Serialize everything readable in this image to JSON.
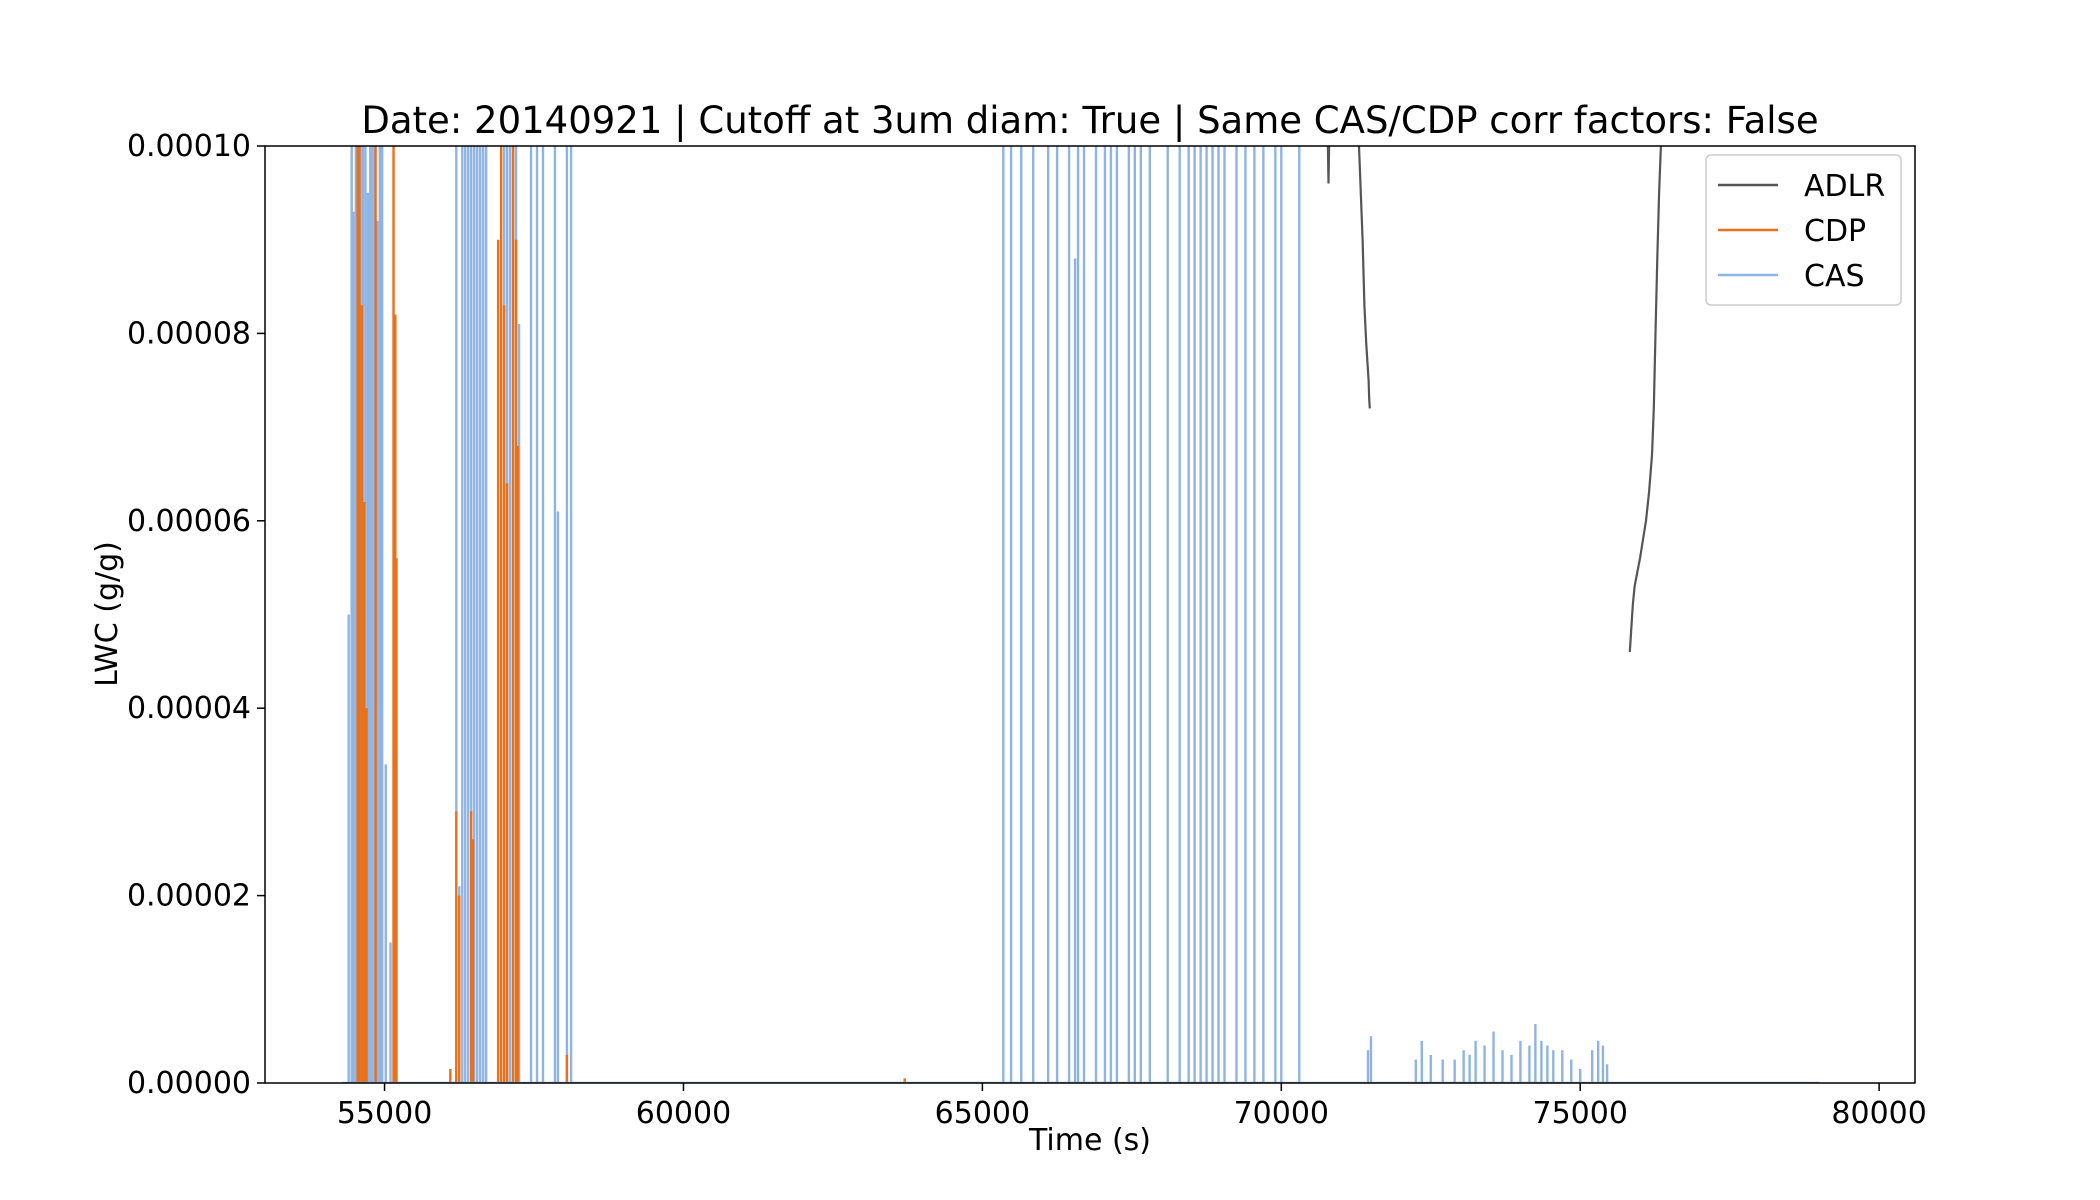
{
  "chart_data": {
    "type": "line",
    "title": "Date: 20140921 | Cutoff at 3um diam: True | Same CAS/CDP corr factors: False",
    "xlabel": "Time (s)",
    "ylabel": "LWC (g/g)",
    "xlim": [
      53000,
      80600
    ],
    "ylim": [
      0,
      0.0001
    ],
    "x_ticks": [
      55000,
      60000,
      65000,
      70000,
      75000,
      80000
    ],
    "x_tick_labels": [
      "55000",
      "60000",
      "65000",
      "70000",
      "75000",
      "80000"
    ],
    "y_ticks": [
      0,
      2e-05,
      4e-05,
      6e-05,
      8e-05,
      0.0001
    ],
    "y_tick_labels": [
      "0.00000",
      "0.00002",
      "0.00004",
      "0.00006",
      "0.00008",
      "0.00010"
    ],
    "grid": false,
    "legend_position": "top-right",
    "series": [
      {
        "name": "ADLR",
        "color": "#555555",
        "style": "line",
        "segments": [
          [
            [
              70780,
              0.0001
            ],
            [
              70790,
              9.6e-05
            ],
            [
              70800,
              0.0001
            ]
          ],
          [
            [
              71300,
              0.0001
            ],
            [
              71330,
              9.5e-05
            ],
            [
              71360,
              9e-05
            ],
            [
              71390,
              8.3e-05
            ],
            [
              71420,
              7.9e-05
            ],
            [
              71440,
              7.7e-05
            ],
            [
              71460,
              7.5e-05
            ],
            [
              71470,
              7.3e-05
            ],
            [
              71480,
              7.2e-05
            ]
          ],
          [
            [
              75830,
              4.6e-05
            ],
            [
              75850,
              4.8e-05
            ],
            [
              75880,
              5.1e-05
            ],
            [
              75910,
              5.3e-05
            ],
            [
              75940,
              5.4e-05
            ],
            [
              75970,
              5.5e-05
            ],
            [
              76000,
              5.6e-05
            ],
            [
              76050,
              5.8e-05
            ],
            [
              76100,
              6e-05
            ],
            [
              76150,
              6.3e-05
            ],
            [
              76200,
              6.7e-05
            ],
            [
              76230,
              7.2e-05
            ],
            [
              76260,
              8e-05
            ],
            [
              76290,
              8.8e-05
            ],
            [
              76320,
              9.5e-05
            ],
            [
              76350,
              0.0001
            ]
          ]
        ]
      },
      {
        "name": "CDP",
        "color": "#e8711a",
        "style": "spikes",
        "points": [
          [
            54550,
            0.0001
          ],
          [
            54580,
            0.0001
          ],
          [
            54620,
            8.3e-05
          ],
          [
            54660,
            6.2e-05
          ],
          [
            54700,
            4e-05
          ],
          [
            54850,
            0.0001
          ],
          [
            55150,
            0.0001
          ],
          [
            55180,
            8.2e-05
          ],
          [
            55200,
            5.6e-05
          ],
          [
            56100,
            1.5e-06
          ],
          [
            56200,
            2.9e-05
          ],
          [
            56250,
            2e-05
          ],
          [
            56450,
            2.9e-05
          ],
          [
            56480,
            2.6e-05
          ],
          [
            56900,
            9e-05
          ],
          [
            56950,
            0.0001
          ],
          [
            57000,
            8.3e-05
          ],
          [
            57050,
            6.4e-05
          ],
          [
            57150,
            0.0001
          ],
          [
            57200,
            9e-05
          ],
          [
            57230,
            6.8e-05
          ],
          [
            58050,
            3e-06
          ],
          [
            63700,
            5e-07
          ]
        ]
      },
      {
        "name": "CAS",
        "color": "#8fb4e3",
        "style": "spikes",
        "points": [
          [
            54400,
            5e-05
          ],
          [
            54450,
            0.0001
          ],
          [
            54480,
            9.3e-05
          ],
          [
            54520,
            0.0001
          ],
          [
            54560,
            0.0001
          ],
          [
            54600,
            0.0001
          ],
          [
            54640,
            0.0001
          ],
          [
            54680,
            0.0001
          ],
          [
            54720,
            9.5e-05
          ],
          [
            54760,
            0.0001
          ],
          [
            54800,
            0.0001
          ],
          [
            54840,
            0.0001
          ],
          [
            54880,
            9.2e-05
          ],
          [
            54920,
            0.0001
          ],
          [
            54960,
            0.0001
          ],
          [
            55020,
            3.4e-05
          ],
          [
            55100,
            1.5e-05
          ],
          [
            55180,
            4.5e-06
          ],
          [
            56200,
            0.0001
          ],
          [
            56250,
            2.1e-05
          ],
          [
            56300,
            0.0001
          ],
          [
            56350,
            0.0001
          ],
          [
            56400,
            0.0001
          ],
          [
            56450,
            0.0001
          ],
          [
            56500,
            0.0001
          ],
          [
            56550,
            0.0001
          ],
          [
            56600,
            0.0001
          ],
          [
            56650,
            0.0001
          ],
          [
            56700,
            0.0001
          ],
          [
            57000,
            0.0001
          ],
          [
            57050,
            0.0001
          ],
          [
            57100,
            0.0001
          ],
          [
            57150,
            0.0001
          ],
          [
            57200,
            0.0001
          ],
          [
            57250,
            8.1e-05
          ],
          [
            57450,
            0.0001
          ],
          [
            57550,
            0.0001
          ],
          [
            57650,
            0.0001
          ],
          [
            57850,
            0.0001
          ],
          [
            57900,
            6.1e-05
          ],
          [
            58050,
            0.0001
          ],
          [
            58120,
            0.0001
          ],
          [
            65350,
            0.0001
          ],
          [
            65480,
            0.0001
          ],
          [
            65650,
            0.0001
          ],
          [
            65850,
            0.0001
          ],
          [
            66100,
            0.0001
          ],
          [
            66250,
            0.0001
          ],
          [
            66450,
            0.0001
          ],
          [
            66550,
            8.8e-05
          ],
          [
            66600,
            0.0001
          ],
          [
            66700,
            0.0001
          ],
          [
            66900,
            0.0001
          ],
          [
            67050,
            0.0001
          ],
          [
            67150,
            0.0001
          ],
          [
            67250,
            0.0001
          ],
          [
            67450,
            0.0001
          ],
          [
            67550,
            0.0001
          ],
          [
            67650,
            0.0001
          ],
          [
            67800,
            0.0001
          ],
          [
            68100,
            0.0001
          ],
          [
            68300,
            0.0001
          ],
          [
            68450,
            0.0001
          ],
          [
            68550,
            0.0001
          ],
          [
            68650,
            0.0001
          ],
          [
            68750,
            0.0001
          ],
          [
            68850,
            0.0001
          ],
          [
            68950,
            0.0001
          ],
          [
            69050,
            0.0001
          ],
          [
            69250,
            0.0001
          ],
          [
            69400,
            0.0001
          ],
          [
            69550,
            0.0001
          ],
          [
            69700,
            0.0001
          ],
          [
            69900,
            0.0001
          ],
          [
            70000,
            0.0001
          ],
          [
            70300,
            0.0001
          ],
          [
            71450,
            3.5e-06
          ],
          [
            71500,
            5e-06
          ],
          [
            72250,
            2.5e-06
          ],
          [
            72350,
            4.5e-06
          ],
          [
            72500,
            3e-06
          ],
          [
            72700,
            2.5e-06
          ],
          [
            72900,
            2.5e-06
          ],
          [
            73050,
            3.5e-06
          ],
          [
            73150,
            3e-06
          ],
          [
            73250,
            4.5e-06
          ],
          [
            73400,
            4e-06
          ],
          [
            73550,
            5.5e-06
          ],
          [
            73700,
            3.5e-06
          ],
          [
            73850,
            3e-06
          ],
          [
            74000,
            4.5e-06
          ],
          [
            74150,
            4e-06
          ],
          [
            74250,
            6.3e-06
          ],
          [
            74350,
            4.5e-06
          ],
          [
            74450,
            4e-06
          ],
          [
            74550,
            3.5e-06
          ],
          [
            74700,
            3.5e-06
          ],
          [
            74850,
            2.5e-06
          ],
          [
            75000,
            1.5e-06
          ],
          [
            75200,
            3.5e-06
          ],
          [
            75300,
            4.5e-06
          ],
          [
            75380,
            4e-06
          ],
          [
            75450,
            2e-06
          ]
        ]
      }
    ]
  }
}
